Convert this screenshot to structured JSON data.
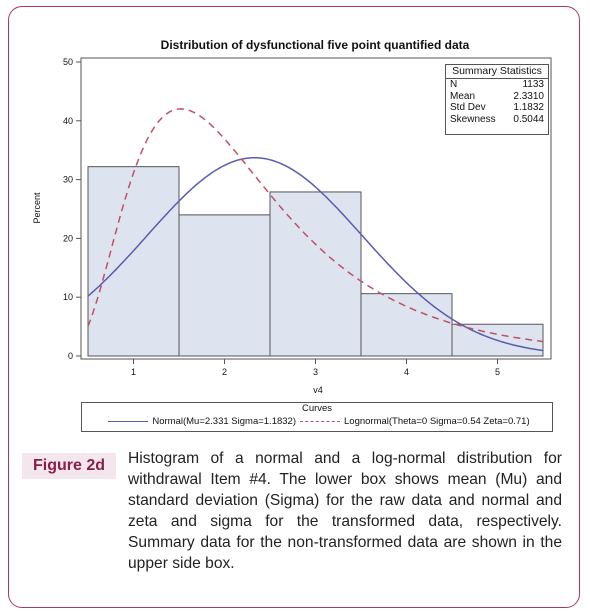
{
  "figure": {
    "label": "Figure 2d",
    "caption": "Histogram of a normal and a log-normal distribution for withdrawal Item #4. The lower box shows mean (Mu) and standard deviation (Sigma) for the raw data and normal and zeta and sigma for the transformed data, respectively. Summary data for the non-transformed data are shown in the upper side box."
  },
  "chart_data": {
    "type": "bar",
    "title": "Distribution of dysfunctional five point quantified data",
    "xlabel": "v4",
    "ylabel": "Percent",
    "categories": [
      "1",
      "2",
      "3",
      "4",
      "5"
    ],
    "values": [
      32.2,
      24.0,
      27.9,
      10.6,
      5.4
    ],
    "x_ticks": [
      "1",
      "2",
      "3",
      "4",
      "5"
    ],
    "y_ticks": [
      "0",
      "10",
      "20",
      "30",
      "40",
      "50"
    ],
    "xlim": [
      0.5,
      5.5
    ],
    "ylim": [
      0,
      50
    ],
    "bar_fill": "#dde3ef",
    "bar_edge": "#555555",
    "curves": [
      {
        "name": "Normal(Mu=2.331 Sigma=1.1832)",
        "kind": "normal",
        "mu": 2.331,
        "sigma": 1.1832,
        "style": "solid",
        "color": "#5a5cb0"
      },
      {
        "name": "Lognormal(Theta=0 Sigma=0.54 Zeta=0.71)",
        "kind": "lognormal",
        "theta": 0,
        "sigma": 0.54,
        "zeta": 0.71,
        "style": "dashed",
        "color": "#c0506a"
      }
    ],
    "legend_title": "Curves",
    "legend_placement": "bottom",
    "summary_statistics": {
      "title": "Summary Statistics",
      "rows": [
        {
          "label": "N",
          "value": "1133"
        },
        {
          "label": "Mean",
          "value": "2.3310"
        },
        {
          "label": "Std Dev",
          "value": "1.1832"
        },
        {
          "label": "Skewness",
          "value": "0.5044"
        }
      ]
    }
  }
}
